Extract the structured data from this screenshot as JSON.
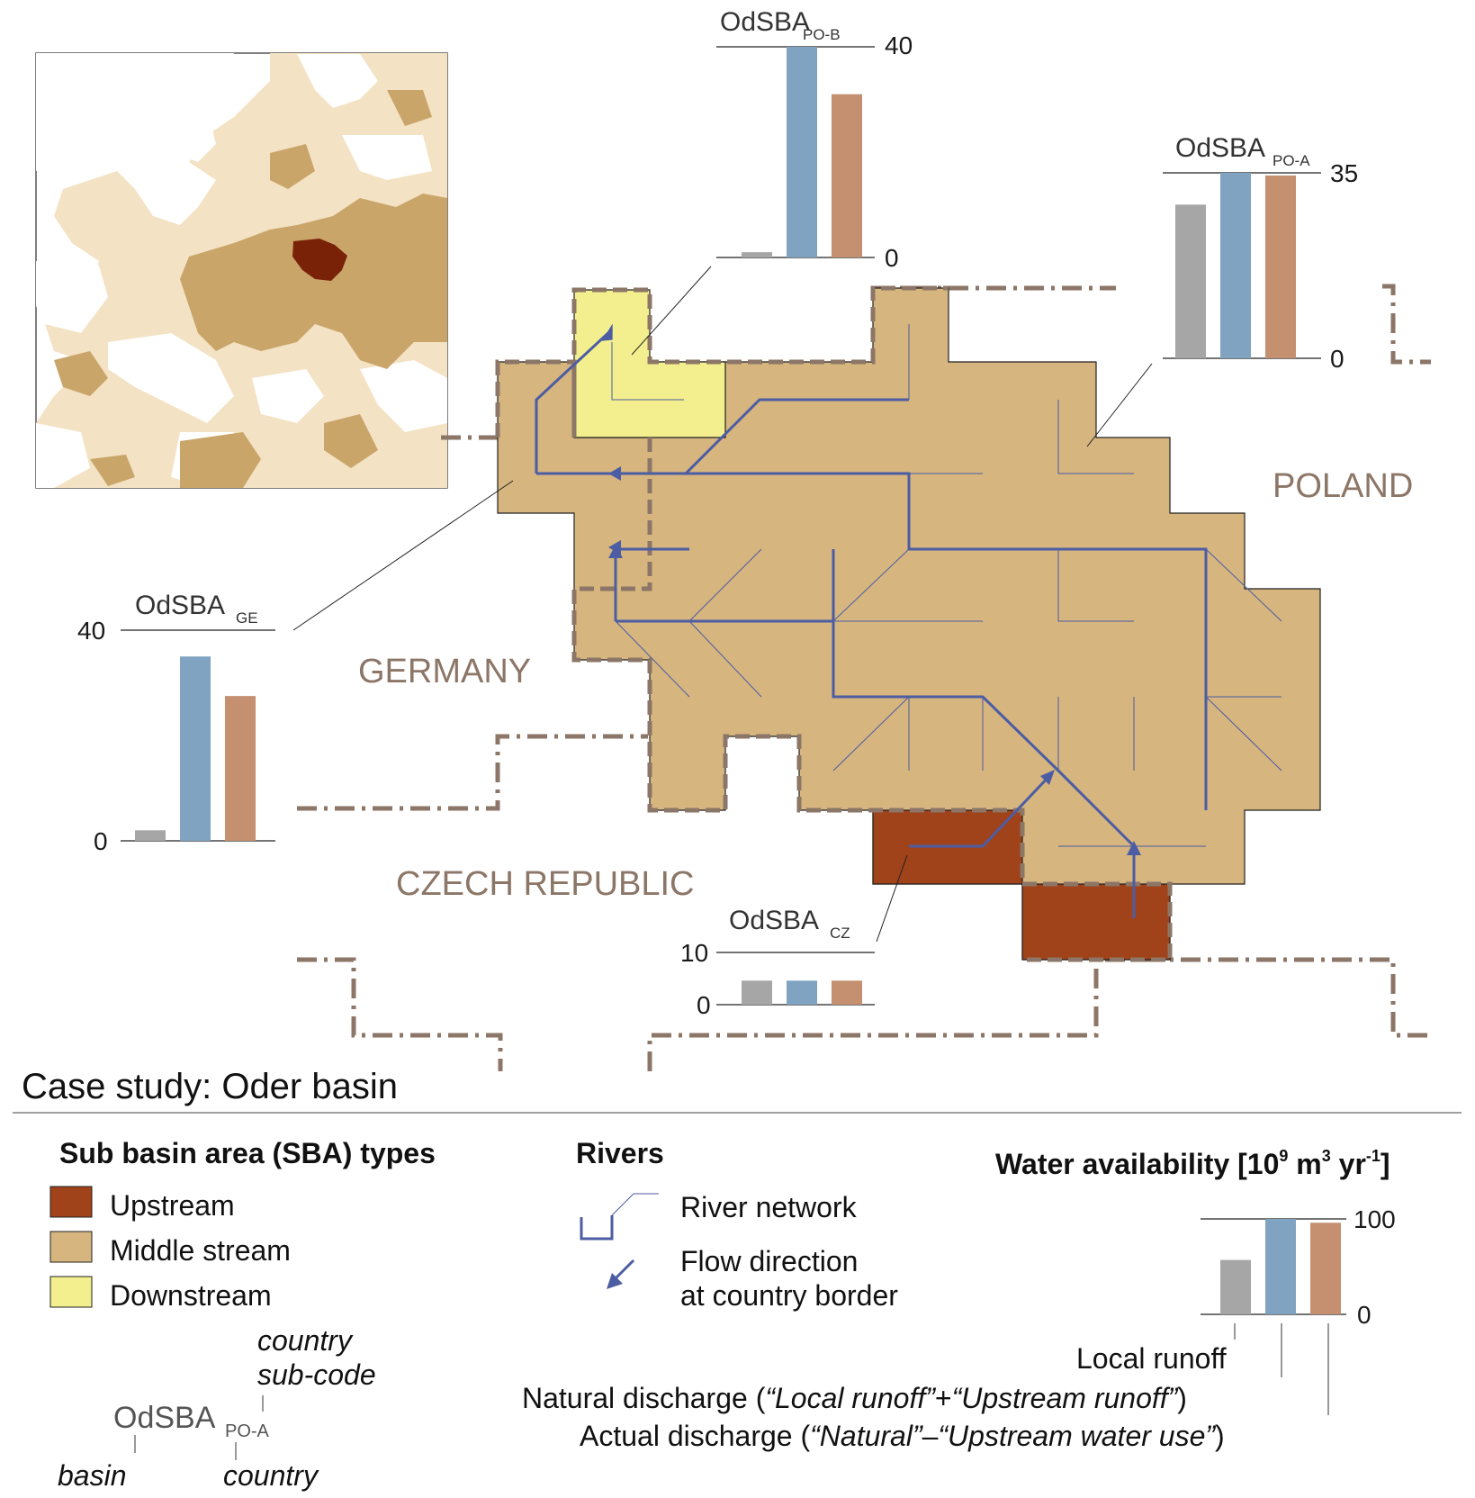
{
  "case_title": "Case study: Oder basin",
  "countries": {
    "poland": "POLAND",
    "germany": "GERMANY",
    "czech": "CZECH REPUBLIC"
  },
  "colors": {
    "upstream": "#a0421a",
    "middle": "#d6b57f",
    "downstream": "#f3ef8e",
    "river": "#4c5da3",
    "border": "#8c7667",
    "local": "#a6a6a6",
    "natural": "#7fa3c1",
    "actual": "#c49070",
    "map_light": "#f3e2c3",
    "map_mid": "#c9a56a",
    "map_focus": "#7a2207"
  },
  "legend": {
    "sba_heading": "Sub basin area (SBA) types",
    "upstream": "Upstream",
    "middle": "Middle stream",
    "downstream": "Downstream",
    "rivers_heading": "Rivers",
    "river_network": "River network",
    "flow_line1": "Flow direction",
    "flow_line2": "at country border",
    "wa_heading_pre": "Water availability [10",
    "wa_heading_sup1": "9",
    "wa_heading_mid": " m",
    "wa_heading_sup2": "3",
    "wa_heading_mid2": " yr",
    "wa_heading_sup3": "-1",
    "wa_heading_post": "]",
    "wa_top": "100",
    "wa_bottom": "0",
    "local_runoff": "Local runoff",
    "natural_pre": "Natural discharge (",
    "natural_q1": "“Local runoff”",
    "natural_plus": "+",
    "natural_q2": "“Upstream runoff”",
    "natural_post": ")",
    "actual_pre": "Actual discharge  (",
    "actual_q1": "“Natural”",
    "actual_minus": "–",
    "actual_q2": "“Upstream water use”",
    "actual_post": ")",
    "code_country_sub": "country",
    "code_country_sub2": "sub-code",
    "code_main": "OdSBA",
    "code_sub": "PO-A",
    "code_basin": "basin",
    "code_country": "country"
  },
  "chart_data": [
    {
      "type": "bar",
      "id": "pob",
      "title_main": "OdSBA",
      "title_sub": "PO-B",
      "categories": [
        "Local runoff",
        "Natural discharge",
        "Actual discharge"
      ],
      "values": [
        1,
        40,
        31
      ],
      "ylim": [
        0,
        40
      ],
      "tick_top": "40",
      "tick_bottom": "0"
    },
    {
      "type": "bar",
      "id": "poa",
      "title_main": "OdSBA",
      "title_sub": "PO-A",
      "categories": [
        "Local runoff",
        "Natural discharge",
        "Actual discharge"
      ],
      "values": [
        29,
        35,
        34.5
      ],
      "ylim": [
        0,
        35
      ],
      "tick_top": "35",
      "tick_bottom": "0"
    },
    {
      "type": "bar",
      "id": "ge",
      "title_main": "OdSBA",
      "title_sub": "GE",
      "categories": [
        "Local runoff",
        "Natural discharge",
        "Actual discharge"
      ],
      "values": [
        2,
        35,
        27.5
      ],
      "ylim": [
        0,
        40
      ],
      "tick_top": "40",
      "tick_bottom": "0"
    },
    {
      "type": "bar",
      "id": "cz",
      "title_main": "OdSBA",
      "title_sub": "CZ",
      "categories": [
        "Local runoff",
        "Natural discharge",
        "Actual discharge"
      ],
      "values": [
        4.6,
        4.6,
        4.6
      ],
      "ylim": [
        0,
        10
      ],
      "tick_top": "10",
      "tick_bottom": "0"
    },
    {
      "type": "bar",
      "id": "legend",
      "categories": [
        "Local runoff",
        "Natural discharge",
        "Actual discharge"
      ],
      "values": [
        57,
        100,
        96
      ],
      "ylim": [
        0,
        100
      ],
      "tick_top": "100",
      "tick_bottom": "0"
    }
  ]
}
